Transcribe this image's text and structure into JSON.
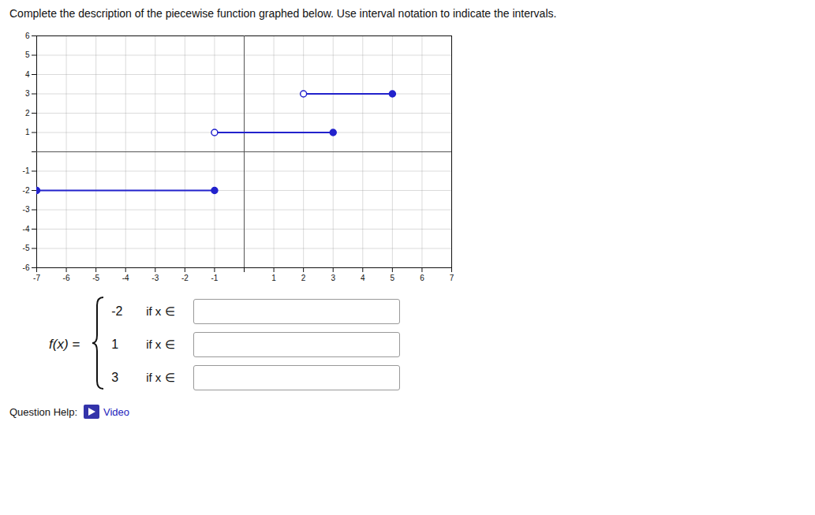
{
  "chart_data": {
    "type": "segment",
    "title": "Complete the description of the piecewise function graphed below. Use interval notation to indicate the intervals.",
    "segments": [
      {
        "x_start": -7,
        "x_end": -1,
        "y": -2,
        "start_open": false,
        "end_open": false
      },
      {
        "x_start": -1,
        "x_end": 3,
        "y": 1,
        "start_open": true,
        "end_open": false
      },
      {
        "x_start": 2,
        "x_end": 5,
        "y": 3,
        "start_open": true,
        "end_open": false
      }
    ],
    "color": "#2222cc",
    "xlim": [
      -7,
      7
    ],
    "ylim": [
      -6,
      6
    ],
    "xticks": [
      -7,
      -6,
      -5,
      -4,
      -3,
      -2,
      -1,
      {
        "value": 0,
        "label": null
      },
      1,
      2,
      3,
      4,
      5,
      6,
      7
    ],
    "yticks": [
      -6,
      -5,
      -4,
      -3,
      -2,
      -1,
      {
        "value": 0,
        "label": null
      },
      1,
      2,
      3,
      4,
      5,
      6
    ],
    "grid": true,
    "formula": {
      "lhs": "f(x) =",
      "pieces": [
        {
          "value": -2,
          "label": "if x ∈"
        },
        {
          "value": 1,
          "label": "if x ∈"
        },
        {
          "value": 3,
          "label": "if x ∈"
        }
      ]
    },
    "question_help": "Question Help:",
    "video_label": "Video"
  }
}
